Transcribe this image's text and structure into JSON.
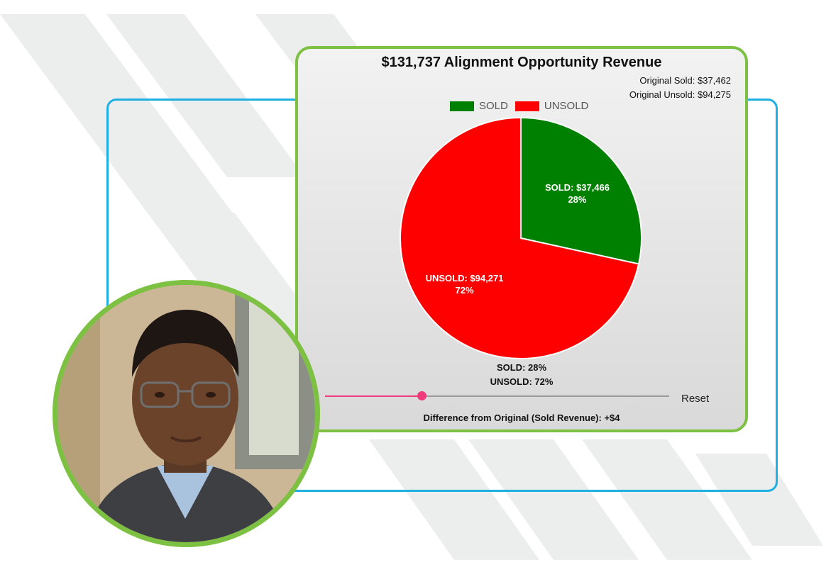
{
  "colors": {
    "sold": "#008000",
    "unsold": "#ff0000",
    "card_border": "#7dc142",
    "frame_border": "#1fb0e3",
    "slider_accent": "#ee3b7b"
  },
  "chart_data": {
    "type": "pie",
    "title": "$131,737 Alignment Opportunity Revenue",
    "original_sold": "Original Sold: $37,462",
    "original_unsold": "Original Unsold: $94,275",
    "legend_position": "top",
    "legend": [
      {
        "label": "SOLD",
        "color": "#008000"
      },
      {
        "label": "UNSOLD",
        "color": "#ff0000"
      }
    ],
    "slices": [
      {
        "name": "SOLD",
        "value": 37466,
        "percent": 28,
        "color": "#008000",
        "label": "SOLD: $37,466",
        "pct_label": "28%"
      },
      {
        "name": "UNSOLD",
        "value": 94271,
        "percent": 72,
        "color": "#ff0000",
        "label": "UNSOLD: $94,271",
        "pct_label": "72%"
      }
    ],
    "summary_sold": "SOLD: 28%",
    "summary_unsold": "UNSOLD: 72%"
  },
  "slider": {
    "value_fraction": 0.28
  },
  "reset_label": "Reset",
  "difference_text": "Difference from Original (Sold Revenue): +$4",
  "photo": {
    "icon": "person-portrait-icon"
  }
}
